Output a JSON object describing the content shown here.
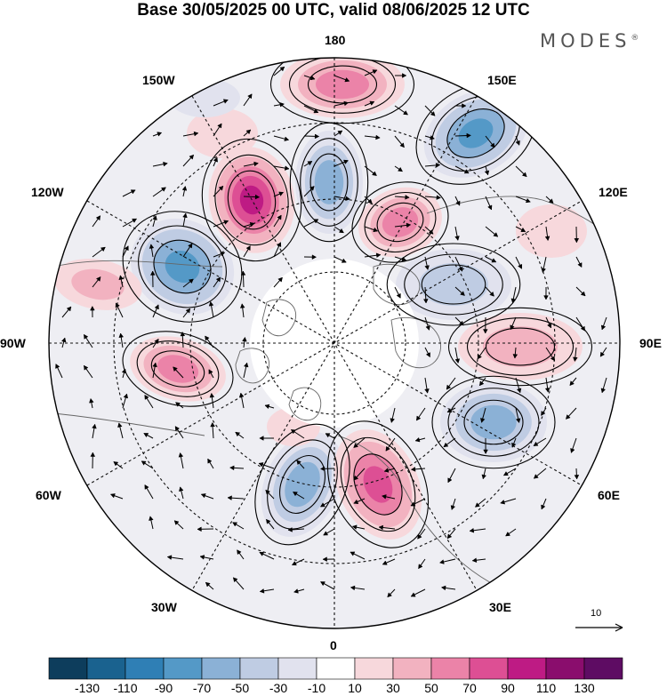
{
  "title": "Base 30/05/2025 00 UTC, valid 08/06/2025 12 UTC",
  "brand": "MODES",
  "brand_mark": "®",
  "longitude_labels": {
    "top": "180",
    "top_left": "150W",
    "top_right": "150E",
    "upper_left": "120W",
    "upper_right": "120E",
    "left": "90W",
    "right": "90E",
    "lower_left": "60W",
    "lower_right": "60E",
    "bottom_left": "30W",
    "bottom_right": "30E",
    "bottom": "0"
  },
  "reference_vector": {
    "label": "10"
  },
  "colorbar": {
    "ticks": [
      "-130",
      "-110",
      "-90",
      "-70",
      "-50",
      "-30",
      "-10",
      "10",
      "30",
      "50",
      "70",
      "90",
      "110",
      "130"
    ],
    "colors": [
      "#0d3d5c",
      "#1a628f",
      "#2f7fb5",
      "#5499c7",
      "#8bb1d6",
      "#bfcce3",
      "#e1e2ee",
      "#ffffff",
      "#f7d8dc",
      "#f2b2c0",
      "#eb83a8",
      "#dd4f94",
      "#be1b84",
      "#8a0d6d",
      "#5e0c63"
    ]
  },
  "map": {
    "projection": "north-polar-stereographic",
    "anomalies": [
      {
        "kind": "positive",
        "level": 3
      },
      {
        "kind": "positive",
        "level": 5
      },
      {
        "kind": "negative",
        "level": 3
      },
      {
        "kind": "negative",
        "level": 4
      },
      {
        "kind": "positive",
        "level": 3
      },
      {
        "kind": "negative",
        "level": 4
      },
      {
        "kind": "negative",
        "level": 2
      },
      {
        "kind": "positive",
        "level": 2
      },
      {
        "kind": "positive",
        "level": 3
      },
      {
        "kind": "negative",
        "level": 3
      },
      {
        "kind": "negative",
        "level": 3
      },
      {
        "kind": "positive",
        "level": 4
      },
      {
        "kind": "positive",
        "level": 1
      },
      {
        "kind": "positive",
        "level": 2
      },
      {
        "kind": "negative",
        "level": 1
      },
      {
        "kind": "positive",
        "level": 1
      },
      {
        "kind": "positive",
        "level": 1
      }
    ]
  }
}
